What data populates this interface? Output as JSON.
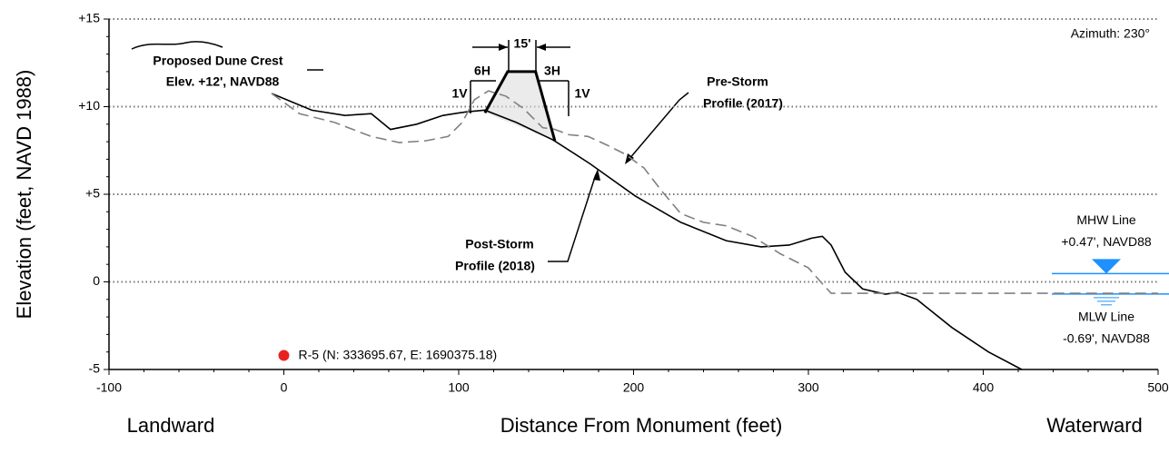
{
  "chart_data": {
    "type": "line",
    "x_label": "Distance From Monument (feet)",
    "y_label": "Elevation (feet, NAVD 1988)",
    "left_label": "Landward",
    "right_label": "Waterward",
    "xlim": [
      -100,
      500
    ],
    "ylim": [
      -5,
      15
    ],
    "xticks": [
      -100,
      0,
      100,
      200,
      300,
      400,
      500
    ],
    "yticks": [
      {
        "value": 15,
        "label": "+15"
      },
      {
        "value": 10,
        "label": "+10"
      },
      {
        "value": 5,
        "label": "+5"
      },
      0,
      -5
    ],
    "grid": true,
    "series": [
      {
        "name": "Post-Storm Profile (2018)",
        "color": "#000000",
        "dash": false,
        "x": [
          -7,
          16,
          35,
          50,
          61,
          76,
          91,
          104,
          115,
          133,
          154,
          175,
          201,
          227,
          253,
          273,
          289,
          302,
          308,
          313,
          321,
          331,
          344,
          351,
          362,
          382,
          403,
          422
        ],
        "values": [
          10.75,
          9.8,
          9.5,
          9.6,
          8.7,
          9.0,
          9.5,
          9.7,
          9.8,
          9.1,
          8.1,
          6.75,
          4.9,
          3.4,
          2.35,
          2.0,
          2.1,
          2.5,
          2.6,
          2.1,
          0.55,
          -0.4,
          -0.7,
          -0.6,
          -1.0,
          -2.6,
          -4.0,
          -5.0
        ]
      },
      {
        "name": "Pre-Storm Profile (2017)",
        "color": "#808080",
        "dash": true,
        "x": [
          -7,
          9,
          29,
          50,
          66,
          81,
          94,
          102,
          109,
          117,
          127,
          137,
          148,
          155,
          163,
          174,
          185,
          195,
          206,
          216,
          227,
          240,
          253,
          268,
          284,
          300,
          307,
          313,
          500
        ],
        "values": [
          10.75,
          9.6,
          9.1,
          8.3,
          7.95,
          8.05,
          8.3,
          9.1,
          10.4,
          10.9,
          10.6,
          9.9,
          8.8,
          8.7,
          8.4,
          8.3,
          7.8,
          7.3,
          6.5,
          5.2,
          3.9,
          3.4,
          3.2,
          2.6,
          1.6,
          0.8,
          0.0,
          -0.65,
          -0.65
        ]
      }
    ],
    "dune_template": {
      "x": [
        115,
        128,
        144,
        155
      ],
      "values": [
        9.65,
        12,
        12,
        8.05
      ]
    },
    "water_lines": [
      {
        "name": "MHW Line",
        "label": "+0.47', NAVD88",
        "value": 0.47,
        "color": "#1e90ff"
      },
      {
        "name": "MLW Line",
        "label": "-0.69', NAVD88",
        "value": -0.69,
        "color": "#1e90ff"
      }
    ],
    "monument": {
      "label": "R-5 (N: 333695.67, E: 1690375.18)",
      "x": 0,
      "y": -4.2,
      "color": "#e8231f"
    },
    "annotations": {
      "azimuth": "Azimuth: 230°",
      "crest_1": "Proposed Dune Crest",
      "crest_2": "Elev. +12', NAVD88",
      "width": "15'",
      "slope_left_h": "6H",
      "slope_left_v": "1V",
      "slope_right_h": "3H",
      "slope_right_v": "1V",
      "pre_1": "Pre-Storm",
      "pre_2": "Profile (2017)",
      "post_1": "Post-Storm",
      "post_2": "Profile (2018)"
    }
  }
}
